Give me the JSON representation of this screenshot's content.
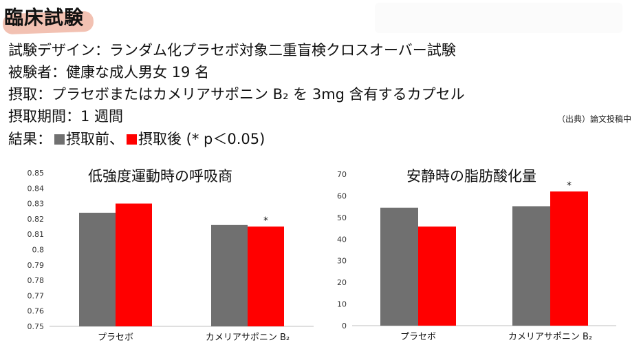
{
  "header": {
    "title": "臨床試験",
    "design": "試験デザイン：ランダム化プラセボ対象二重盲検クロスオーバー試験",
    "subjects": "被験者：健康な成人男女 19 名",
    "intake": "摂取：プラセボまたはカメリアサポニン B₂ を 3mg 含有するカプセル",
    "period": "摂取期間：1 週間",
    "results_prefix": "結果：",
    "legend_before": "摂取前、",
    "legend_after": "摂取後 (* p＜0.05)",
    "source": "（出典）論文投稿中"
  },
  "colors": {
    "before": "#707070",
    "after": "#ff0000",
    "title_highlight": "#f2c1b2"
  },
  "chart_data": [
    {
      "type": "bar",
      "title": "低強度運動時の呼吸商",
      "categories": [
        "プラセボ",
        "カメリアサポニン B₂"
      ],
      "series": [
        {
          "name": "摂取前",
          "values": [
            0.824,
            0.816
          ]
        },
        {
          "name": "摂取後",
          "values": [
            0.83,
            0.815
          ]
        }
      ],
      "ylim": [
        0.75,
        0.85
      ],
      "yticks": [
        "0.75",
        "0.76",
        "0.77",
        "0.78",
        "0.79",
        "0.8",
        "0.81",
        "0.82",
        "0.83",
        "0.84",
        "0.85"
      ],
      "annotations": [
        {
          "category": 1,
          "series": 1,
          "text": "*"
        }
      ],
      "grid": false
    },
    {
      "type": "bar",
      "title": "安静時の脂肪酸化量",
      "categories": [
        "プラセボ",
        "カメリアサポニン B₂"
      ],
      "series": [
        {
          "name": "摂取前",
          "values": [
            54.5,
            55.2
          ]
        },
        {
          "name": "摂取後",
          "values": [
            45.8,
            62.0
          ]
        }
      ],
      "ylim": [
        0,
        70
      ],
      "yticks": [
        "0",
        "10",
        "20",
        "30",
        "40",
        "50",
        "60",
        "70"
      ],
      "annotations": [
        {
          "category": 1,
          "series": 1,
          "text": "*"
        }
      ],
      "grid": false
    }
  ]
}
